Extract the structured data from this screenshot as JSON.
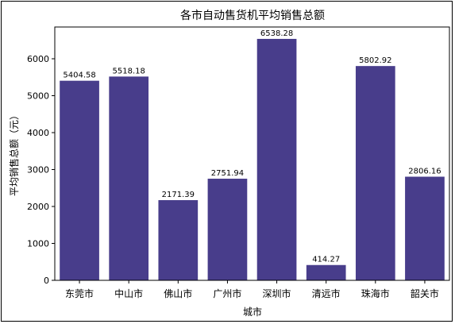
{
  "chart_data": {
    "type": "bar",
    "title": "各市自动售货机平均销售总额",
    "xlabel": "城市",
    "ylabel": "平均销售总额（元）",
    "categories": [
      "东莞市",
      "中山市",
      "佛山市",
      "广州市",
      "深圳市",
      "清远市",
      "珠海市",
      "韶关市"
    ],
    "values": [
      5404.58,
      5518.18,
      2171.39,
      2751.94,
      6538.28,
      414.27,
      5802.92,
      2806.16
    ],
    "value_labels": [
      "5404.58",
      "5518.18",
      "2171.39",
      "2751.94",
      "6538.28",
      "414.27",
      "5802.92",
      "2806.16"
    ],
    "ylim": [
      0,
      6860
    ],
    "yticks": [
      0,
      1000,
      2000,
      3000,
      4000,
      5000,
      6000
    ],
    "grid": false,
    "bar_color": "#483d8b"
  }
}
